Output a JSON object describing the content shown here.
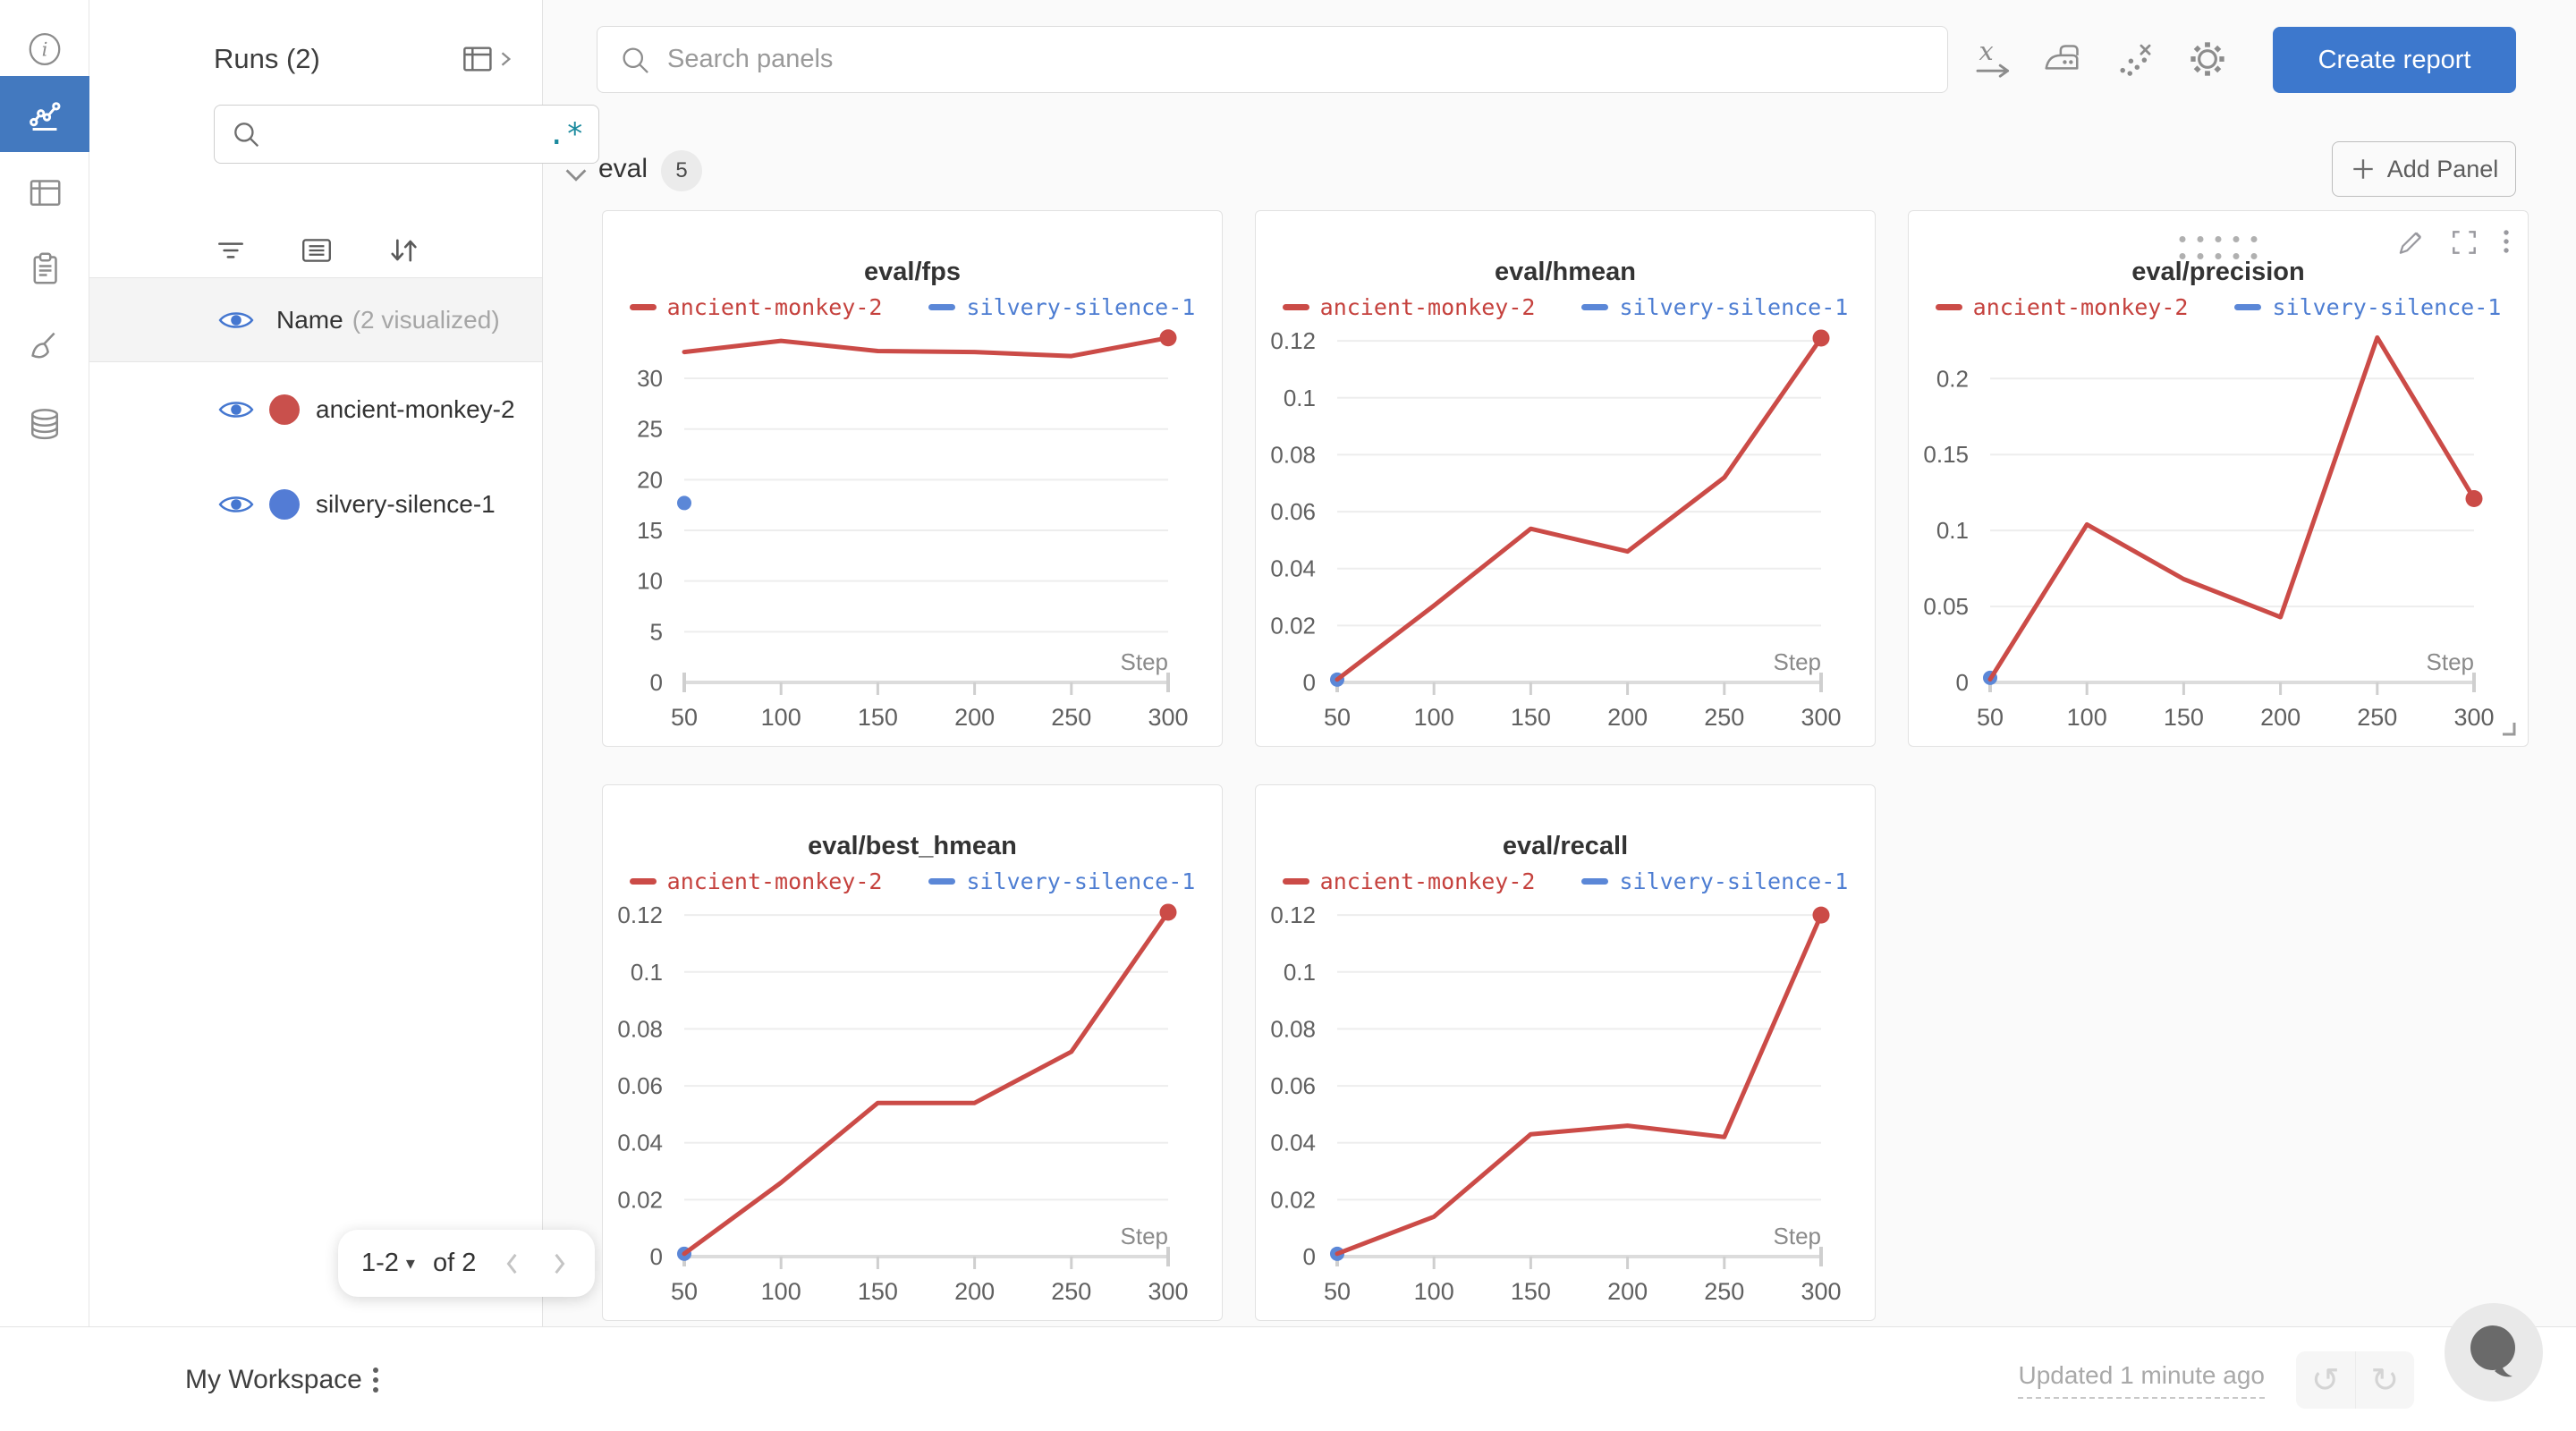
{
  "app": {
    "background": "#fafafa",
    "rail_active_color": "#4379bf",
    "accent_blue": "#3d78cd"
  },
  "rail": {
    "items": [
      "info-icon",
      "workspace-panels-icon",
      "runs-table-icon",
      "reports-clipboard-icon",
      "sweeps-broom-icon",
      "artifacts-database-icon"
    ]
  },
  "runs_panel": {
    "title": "Runs (2)",
    "search": {
      "placeholder": "",
      "regex_hint": ".*"
    },
    "header": {
      "label": "Name",
      "annotation": "(2 visualized)"
    },
    "runs": [
      {
        "name": "ancient-monkey-2",
        "color": "#c9504c"
      },
      {
        "name": "silvery-silence-1",
        "color": "#537cd5"
      }
    ],
    "pagination": {
      "range_label": "1-2",
      "total_label": "of 2"
    }
  },
  "topbar": {
    "search_placeholder": "Search panels",
    "create_report_label": "Create report"
  },
  "section": {
    "title": "eval",
    "panel_count": "5",
    "add_panel_label": "Add Panel"
  },
  "chart_data": [
    {
      "type": "line",
      "title": "eval/fps",
      "xlabel": "Step",
      "x_ticks": [
        50,
        100,
        150,
        200,
        250,
        300
      ],
      "xlim": [
        50,
        300
      ],
      "y_ticks": [
        0,
        5,
        10,
        15,
        20,
        25,
        30
      ],
      "ylim": [
        0,
        35.3
      ],
      "grid": true,
      "legend_position": "top",
      "series": [
        {
          "name": "ancient-monkey-2",
          "color": "#cb4b47",
          "text_color": "#c5413d",
          "x": [
            50,
            100,
            150,
            200,
            250,
            300
          ],
          "y": [
            32.6,
            33.7,
            32.7,
            32.6,
            32.2,
            34.0
          ],
          "end_dot": true
        },
        {
          "name": "silvery-silence-1",
          "color": "#5b87d7",
          "text_color": "#4d7dd2",
          "x": [
            50
          ],
          "y": [
            17.7
          ],
          "end_dot": false
        }
      ],
      "hovered": false
    },
    {
      "type": "line",
      "title": "eval/hmean",
      "xlabel": "Step",
      "x_ticks": [
        50,
        100,
        150,
        200,
        250,
        300
      ],
      "xlim": [
        50,
        300
      ],
      "y_ticks": [
        0,
        0.02,
        0.04,
        0.06,
        0.08,
        0.1,
        0.12
      ],
      "ylim": [
        0,
        0.1257
      ],
      "grid": true,
      "legend_position": "top",
      "series": [
        {
          "name": "ancient-monkey-2",
          "color": "#cb4b47",
          "text_color": "#c5413d",
          "x": [
            50,
            100,
            150,
            200,
            250,
            300
          ],
          "y": [
            0.001,
            0.027,
            0.054,
            0.046,
            0.072,
            0.121
          ],
          "end_dot": true
        },
        {
          "name": "silvery-silence-1",
          "color": "#5b87d7",
          "text_color": "#4d7dd2",
          "x": [
            50
          ],
          "y": [
            0.001
          ],
          "end_dot": false
        }
      ],
      "hovered": false
    },
    {
      "type": "line",
      "title": "eval/precision",
      "xlabel": "Step",
      "x_ticks": [
        50,
        100,
        150,
        200,
        250,
        300
      ],
      "xlim": [
        50,
        300
      ],
      "y_ticks": [
        0,
        0.05,
        0.1,
        0.15,
        0.2
      ],
      "ylim": [
        0,
        0.2355
      ],
      "grid": true,
      "legend_position": "top",
      "series": [
        {
          "name": "ancient-monkey-2",
          "color": "#cb4b47",
          "text_color": "#c5413d",
          "x": [
            50,
            100,
            150,
            200,
            250,
            300
          ],
          "y": [
            0.002,
            0.104,
            0.068,
            0.043,
            0.227,
            0.121
          ],
          "end_dot": true
        },
        {
          "name": "silvery-silence-1",
          "color": "#5b87d7",
          "text_color": "#4d7dd2",
          "x": [
            50
          ],
          "y": [
            0.003
          ],
          "end_dot": false
        }
      ],
      "hovered": true
    },
    {
      "type": "line",
      "title": "eval/best_hmean",
      "xlabel": "Step",
      "x_ticks": [
        50,
        100,
        150,
        200,
        250,
        300
      ],
      "xlim": [
        50,
        300
      ],
      "y_ticks": [
        0,
        0.02,
        0.04,
        0.06,
        0.08,
        0.1,
        0.12
      ],
      "ylim": [
        0,
        0.1257
      ],
      "grid": true,
      "legend_position": "top",
      "series": [
        {
          "name": "ancient-monkey-2",
          "color": "#cb4b47",
          "text_color": "#c5413d",
          "x": [
            50,
            100,
            150,
            200,
            250,
            300
          ],
          "y": [
            0.001,
            0.026,
            0.054,
            0.054,
            0.072,
            0.121
          ],
          "end_dot": true
        },
        {
          "name": "silvery-silence-1",
          "color": "#5b87d7",
          "text_color": "#4d7dd2",
          "x": [
            50
          ],
          "y": [
            0.001
          ],
          "end_dot": false
        }
      ],
      "hovered": false
    },
    {
      "type": "line",
      "title": "eval/recall",
      "xlabel": "Step",
      "x_ticks": [
        50,
        100,
        150,
        200,
        250,
        300
      ],
      "xlim": [
        50,
        300
      ],
      "y_ticks": [
        0,
        0.02,
        0.04,
        0.06,
        0.08,
        0.1,
        0.12
      ],
      "ylim": [
        0,
        0.1257
      ],
      "grid": true,
      "legend_position": "top",
      "series": [
        {
          "name": "ancient-monkey-2",
          "color": "#cb4b47",
          "text_color": "#c5413d",
          "x": [
            50,
            100,
            150,
            200,
            250,
            300
          ],
          "y": [
            0.001,
            0.014,
            0.043,
            0.046,
            0.042,
            0.12
          ],
          "end_dot": true
        },
        {
          "name": "silvery-silence-1",
          "color": "#5b87d7",
          "text_color": "#4d7dd2",
          "x": [
            50
          ],
          "y": [
            0.001
          ],
          "end_dot": false
        }
      ],
      "hovered": false
    }
  ],
  "footer": {
    "workspace_label": "My Workspace",
    "updated_label": "Updated 1 minute ago"
  }
}
